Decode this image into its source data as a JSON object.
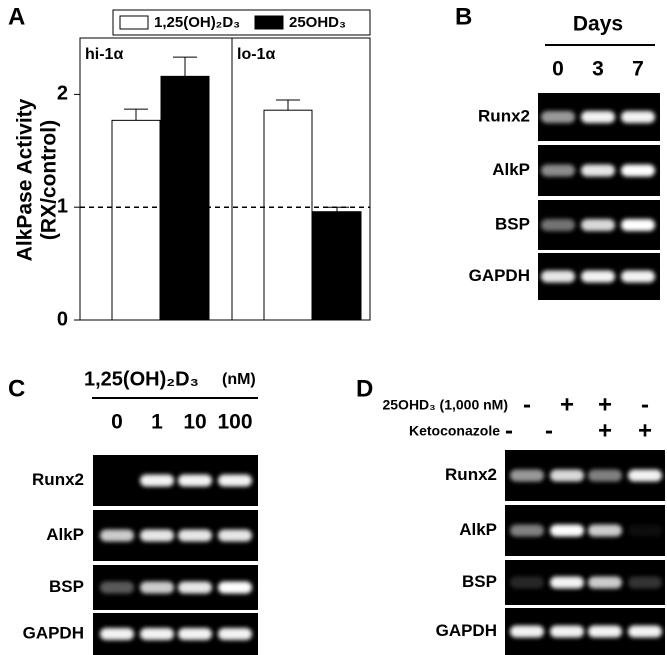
{
  "chart_data": {
    "type": "bar",
    "panel_label": "A",
    "ylabel": [
      "AlkPase Activity",
      "(RX/control)"
    ],
    "categories": [
      "hi-1α",
      "lo-1α"
    ],
    "series": [
      {
        "name": "1,25(OH)₂D₃",
        "color": "#ffffff",
        "values": [
          1.77,
          1.86
        ],
        "errors": [
          0.1,
          0.09
        ]
      },
      {
        "name": "25OHD₃",
        "color": "#000000",
        "values": [
          2.16,
          0.96
        ],
        "errors": [
          0.17,
          0.04
        ]
      }
    ],
    "reference_line": 1,
    "ylim": [
      0,
      2.5
    ],
    "yticks": [
      0,
      1,
      2
    ],
    "grid": false
  },
  "panel_b": {
    "label": "B",
    "header": "Days",
    "lanes": [
      "0",
      "3",
      "7"
    ],
    "rows": [
      "Runx2",
      "AlkP",
      "BSP",
      "GAPDH"
    ]
  },
  "panel_c": {
    "label": "C",
    "header": "1,25(OH)₂D₃",
    "unit": "(nM)",
    "lanes": [
      "0",
      "1",
      "10",
      "100"
    ],
    "rows": [
      "Runx2",
      "AlkP",
      "BSP",
      "GAPDH"
    ]
  },
  "panel_d": {
    "label": "D",
    "conditions": [
      {
        "name": "25OHD₃ (1,000 nM)",
        "signs": [
          "-",
          "+",
          "+",
          "-"
        ]
      },
      {
        "name": "Ketoconazole",
        "signs": [
          "-",
          "-",
          "+",
          "+"
        ]
      }
    ],
    "rows": [
      "Runx2",
      "AlkP",
      "BSP",
      "GAPDH"
    ]
  }
}
